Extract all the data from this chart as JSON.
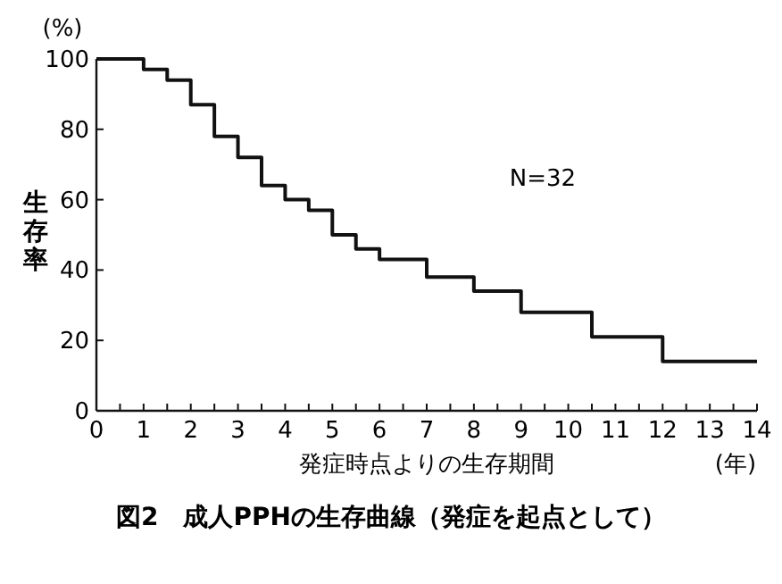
{
  "chart_data": {
    "type": "step",
    "title": "図2　成人PPHの生存曲線（発症を起点として）",
    "xlabel": "発症時点よりの生存期間",
    "ylabel": "生存率",
    "annotations": [
      "N=32",
      "(%)",
      "(年)"
    ],
    "x": [
      0,
      1,
      1.5,
      2,
      2.5,
      3,
      3.5,
      4,
      4.5,
      5,
      5.5,
      6,
      7,
      8,
      9,
      10.5,
      12,
      14
    ],
    "series": [
      {
        "color": "#111111",
        "values": [
          100,
          97,
          94,
          87,
          78,
          72,
          64,
          60,
          57,
          50,
          46,
          43,
          38,
          34,
          28,
          21,
          14,
          14
        ]
      }
    ],
    "xlim": [
      0,
      14
    ],
    "ylim": [
      0,
      100
    ],
    "xticks": [
      0,
      {
        "value": 0.5,
        "label": null
      },
      1,
      {
        "value": 1.5,
        "label": null
      },
      2,
      {
        "value": 2.5,
        "label": null
      },
      3,
      {
        "value": 3.5,
        "label": null
      },
      4,
      {
        "value": 4.5,
        "label": null
      },
      5,
      {
        "value": 5.5,
        "label": null
      },
      6,
      {
        "value": 6.5,
        "label": null
      },
      7,
      {
        "value": 7.5,
        "label": null
      },
      8,
      {
        "value": 8.5,
        "label": null
      },
      9,
      {
        "value": 9.5,
        "label": null
      },
      10,
      {
        "value": 10.5,
        "label": null
      },
      11,
      {
        "value": 11.5,
        "label": null
      },
      12,
      {
        "value": 12.5,
        "label": null
      },
      13,
      {
        "value": 13.5,
        "label": null
      },
      14
    ],
    "yticks": [
      0,
      20,
      40,
      60,
      80,
      100
    ]
  }
}
